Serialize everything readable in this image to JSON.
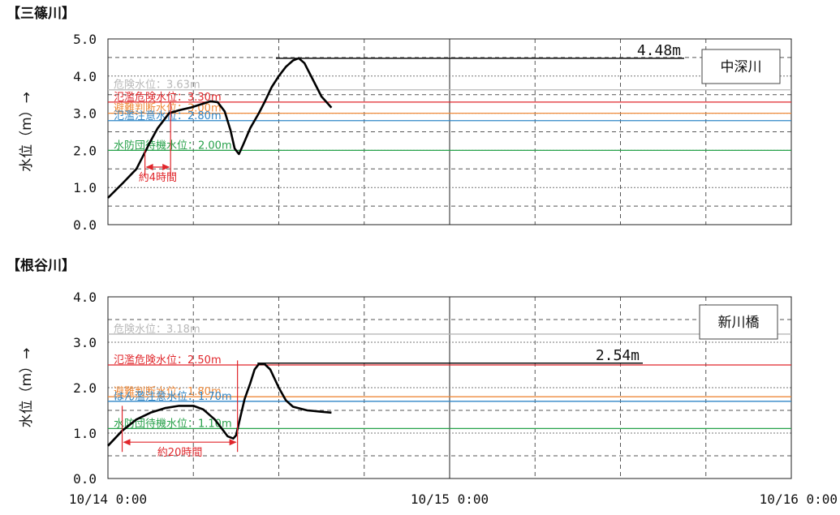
{
  "chart_data": [
    {
      "type": "line",
      "title": "【三篠川】",
      "ylabel": "水位（m）→",
      "ylim": [
        0,
        5
      ],
      "yticks": [
        "0.0",
        "1.0",
        "2.0",
        "3.0",
        "4.0",
        "5.0"
      ],
      "x_tick_labels": [
        "10/14 0:00",
        "10/15 0:00",
        "10/16 0:00"
      ],
      "x_unit": "hours since 10/14 0:00",
      "xlim": [
        0,
        48
      ],
      "grid": true,
      "station": "中深川",
      "levels": [
        {
          "label": "危険水位：3.63m",
          "value": 3.63,
          "color": "#b8b8b8"
        },
        {
          "label": "氾濫危険水位：3.30m",
          "value": 3.3,
          "color": "#e0262b"
        },
        {
          "label": "避難判断水位：3.00m",
          "value": 3.0,
          "color": "#ef8a3a"
        },
        {
          "label": "氾濫注意水位：2.80m",
          "value": 2.8,
          "color": "#2f86c7"
        },
        {
          "label": "水防団待機水位：2.00m",
          "value": 2.0,
          "color": "#27a14a"
        }
      ],
      "peak": {
        "label": "4.48m",
        "value": 4.48,
        "x": 11.8
      },
      "duration": {
        "label": "約4時間",
        "x_start": 2.6,
        "x_end": 4.4,
        "y": 1.55
      },
      "series": [
        {
          "color": "#000000",
          "points": [
            [
              0,
              0.72
            ],
            [
              1.0,
              1.1
            ],
            [
              2.0,
              1.5
            ],
            [
              2.6,
              1.95
            ],
            [
              3.0,
              2.25
            ],
            [
              3.5,
              2.6
            ],
            [
              4.3,
              3.0
            ],
            [
              5.0,
              3.08
            ],
            [
              5.8,
              3.15
            ],
            [
              6.6,
              3.25
            ],
            [
              7.2,
              3.32
            ],
            [
              7.7,
              3.3
            ],
            [
              8.2,
              3.05
            ],
            [
              8.6,
              2.55
            ],
            [
              8.9,
              2.05
            ],
            [
              9.2,
              1.9
            ],
            [
              9.5,
              2.15
            ],
            [
              10.0,
              2.6
            ],
            [
              10.6,
              3.0
            ],
            [
              11.0,
              3.3
            ],
            [
              11.5,
              3.7
            ],
            [
              12.0,
              4.0
            ],
            [
              12.5,
              4.25
            ],
            [
              13.0,
              4.42
            ],
            [
              13.4,
              4.48
            ],
            [
              13.8,
              4.35
            ],
            [
              14.4,
              3.9
            ],
            [
              15.0,
              3.45
            ],
            [
              15.7,
              3.15
            ]
          ]
        }
      ]
    },
    {
      "type": "line",
      "title": "【根谷川】",
      "ylabel": "水位（m）→",
      "ylim": [
        0,
        4
      ],
      "yticks": [
        "0.0",
        "1.0",
        "2.0",
        "3.0",
        "4.0"
      ],
      "x_tick_labels": [
        "10/14 0:00",
        "10/15 0:00",
        "10/16 0:00"
      ],
      "x_unit": "hours since 10/14 0:00",
      "xlim": [
        0,
        48
      ],
      "grid": true,
      "station": "新川橋",
      "levels": [
        {
          "label": "危険水位：3.18m",
          "value": 3.18,
          "color": "#b8b8b8"
        },
        {
          "label": "氾濫危険水位：2.50m",
          "value": 2.5,
          "color": "#e0262b"
        },
        {
          "label": "避難判断水位：1.80m",
          "value": 1.8,
          "color": "#ef8a3a"
        },
        {
          "label": "はん濫注意水位：1.70m",
          "value": 1.7,
          "color": "#2f86c7"
        },
        {
          "label": "水防団待機水位：1.10m",
          "value": 1.1,
          "color": "#27a14a"
        }
      ],
      "peak": {
        "label": "2.54m",
        "value": 2.54,
        "x": 10.5
      },
      "duration": {
        "label": "約20時間",
        "x_start": 1.0,
        "x_end": 9.1,
        "y": 0.8
      },
      "series": [
        {
          "color": "#000000",
          "points": [
            [
              0,
              0.72
            ],
            [
              1.0,
              1.05
            ],
            [
              2.0,
              1.3
            ],
            [
              3.0,
              1.45
            ],
            [
              4.0,
              1.55
            ],
            [
              5.0,
              1.6
            ],
            [
              6.0,
              1.6
            ],
            [
              6.7,
              1.52
            ],
            [
              7.5,
              1.3
            ],
            [
              8.0,
              1.1
            ],
            [
              8.4,
              0.93
            ],
            [
              8.8,
              0.88
            ],
            [
              9.0,
              0.95
            ],
            [
              9.3,
              1.35
            ],
            [
              9.6,
              1.75
            ],
            [
              10.0,
              2.1
            ],
            [
              10.3,
              2.4
            ],
            [
              10.6,
              2.52
            ],
            [
              11.0,
              2.52
            ],
            [
              11.4,
              2.4
            ],
            [
              12.0,
              2.0
            ],
            [
              12.5,
              1.72
            ],
            [
              13.0,
              1.58
            ],
            [
              14.0,
              1.5
            ],
            [
              15.0,
              1.47
            ],
            [
              15.7,
              1.45
            ]
          ]
        }
      ]
    }
  ]
}
